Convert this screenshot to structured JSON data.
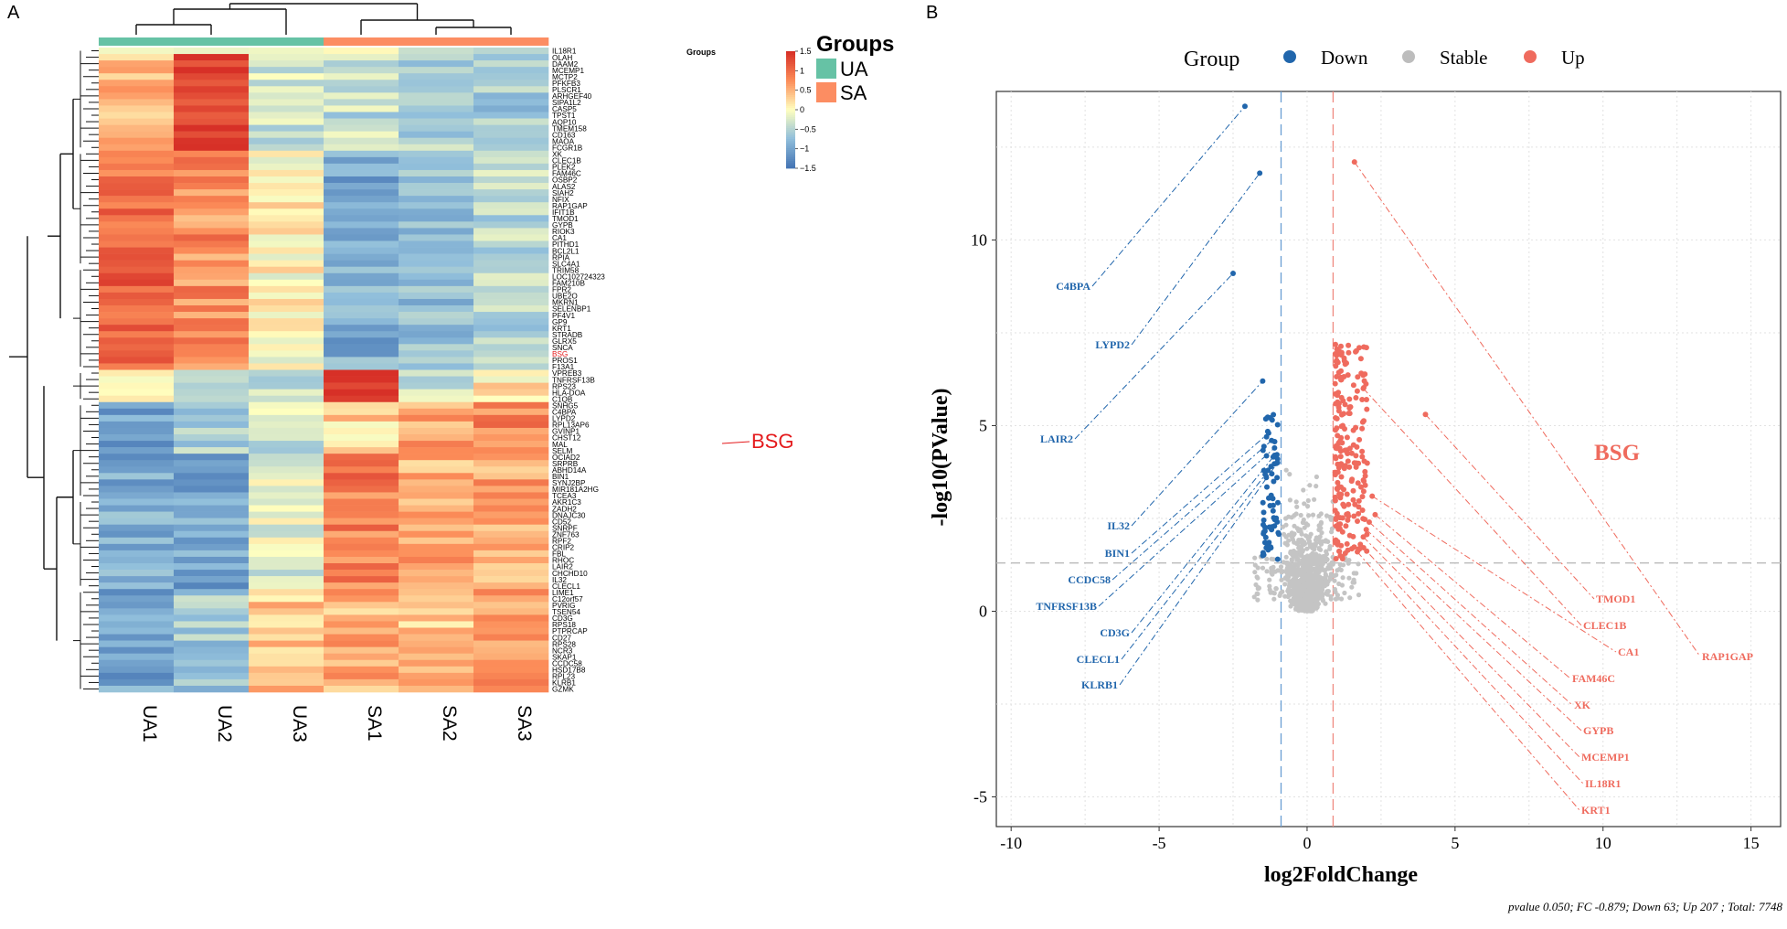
{
  "panel_labels": {
    "a": "A",
    "b": "B"
  },
  "heatmap": {
    "groups_header": "Groups",
    "groups_row_label": "Groups",
    "legend_title": "Groups",
    "legend_items": [
      {
        "label": "UA",
        "color": "#66c2a5"
      },
      {
        "label": "SA",
        "color": "#fc8d62"
      }
    ],
    "colorbar_ticks": [
      "1.5",
      "1",
      "0.5",
      "0",
      "−0.5",
      "−1",
      "−1.5"
    ],
    "highlight_label": "BSG",
    "highlight_color": "#e41a1c"
  },
  "chart_data": [
    {
      "type": "heatmap",
      "title": "",
      "columns": [
        "UA1",
        "UA2",
        "UA3",
        "SA1",
        "SA2",
        "SA3"
      ],
      "column_groups": [
        "UA",
        "UA",
        "UA",
        "SA",
        "SA",
        "SA"
      ],
      "color_range": [
        -1.5,
        1.5
      ],
      "rows": [
        "IL18R1",
        "OLAH",
        "DAAM2",
        "MCEMP1",
        "MCTP2",
        "PFKFB3",
        "PLSCR1",
        "ARHGEF40",
        "SIPA1L2",
        "CASP5",
        "TPST1",
        "AQP10",
        "TMEM158",
        "CD163",
        "MAOA",
        "FCGR1B",
        "XK",
        "CLEC1B",
        "PLEK2",
        "FAM46C",
        "OSBP2",
        "ALAS2",
        "SIAH2",
        "NFIX",
        "RAP1GAP",
        "IFIT1B",
        "TMOD1",
        "GYPB",
        "RIOK3",
        "CA1",
        "PITHD1",
        "BCL2L1",
        "RPIA",
        "SLC4A1",
        "TRIM58",
        "LOC102724323",
        "FAM210B",
        "FPR2",
        "UBE2O",
        "MKRN1",
        "SELENBP1",
        "PF4V1",
        "GP9",
        "KRT1",
        "STRADB",
        "GLRX5",
        "SNCA",
        "BSG",
        "PROS1",
        "F13A1",
        "VPREB3",
        "TNFRSF13B",
        "RPS23",
        "HLA-DOA",
        "C1QB",
        "SNHG5",
        "C4BPA",
        "LYPD2",
        "RPL13AP6",
        "GVINP1",
        "CHST12",
        "MAL",
        "SELM",
        "OCIAD2",
        "SRPRB",
        "ABHD14A",
        "BIN1",
        "SYNJ2BP",
        "MIR181A2HG",
        "TCEA3",
        "AKR1C3",
        "ZADH2",
        "DNAJC30",
        "CD52",
        "SNRPF",
        "ZNF763",
        "RPF2",
        "CRIP2",
        "FBL",
        "RHOC",
        "LAIR2",
        "CHCHD10",
        "IL32",
        "CLECL1",
        "LIME1",
        "C12orf57",
        "PVRIG",
        "TSEN54",
        "CD3G",
        "RPS18",
        "PTPRCAP",
        "CD27",
        "RPS28",
        "NCR3",
        "SKAP1",
        "CCDC58",
        "HSD17B8",
        "RPL23",
        "KLRB1",
        "GZMK"
      ],
      "highlight_row": "BSG"
    },
    {
      "type": "scatter",
      "title": "",
      "xlabel": "log2FoldChange",
      "ylabel": "-log10(PValue)",
      "xlim": [
        -10.5,
        16
      ],
      "ylim": [
        -5.8,
        14
      ],
      "xticks": [
        -10,
        -5,
        0,
        5,
        10,
        15
      ],
      "yticks": [
        -5,
        0,
        5,
        10
      ],
      "thresholds": {
        "pvalue_line": 1.3,
        "fc_lines": [
          -0.879,
          0.879
        ]
      },
      "legend": {
        "title": "Group",
        "entries": [
          {
            "label": "Down",
            "color": "#2166ac"
          },
          {
            "label": "Stable",
            "color": "#bdbdbd"
          },
          {
            "label": "Up",
            "color": "#ef6b5e"
          }
        ]
      },
      "highlight_annotation": "BSG",
      "footer": "pvalue  0.050; FC -0.879; Down 63; Up 207 ; Total: 7748",
      "labeled_points": {
        "down": [
          {
            "gene": "C4BPA",
            "x": -2.1,
            "y": 13.6
          },
          {
            "gene": "LYPD2",
            "x": -1.6,
            "y": 11.8
          },
          {
            "gene": "LAIR2",
            "x": -2.5,
            "y": 9.1
          },
          {
            "gene": "IL32",
            "x": -1.5,
            "y": 6.2
          },
          {
            "gene": "BIN1",
            "x": -1.3,
            "y": 4.8
          },
          {
            "gene": "CCDC58",
            "x": -1.2,
            "y": 4.6
          },
          {
            "gene": "TNFRSF13B",
            "x": -1.1,
            "y": 4.4
          },
          {
            "gene": "CD3G",
            "x": -1.1,
            "y": 4.2
          },
          {
            "gene": "CLECL1",
            "x": -1.0,
            "y": 4.1
          },
          {
            "gene": "KLRB1",
            "x": -1.0,
            "y": 4.0
          }
        ],
        "up": [
          {
            "gene": "RAP1GAP",
            "x": 1.6,
            "y": 12.1
          },
          {
            "gene": "TMOD1",
            "x": 4.0,
            "y": 5.3
          },
          {
            "gene": "CLEC1B",
            "x": 1.9,
            "y": 6.0
          },
          {
            "gene": "CA1",
            "x": 2.2,
            "y": 3.1
          },
          {
            "gene": "FAM46C",
            "x": 2.3,
            "y": 2.6
          },
          {
            "gene": "XK",
            "x": 2.1,
            "y": 2.4
          },
          {
            "gene": "GYPB",
            "x": 2.0,
            "y": 2.2
          },
          {
            "gene": "MCEMP1",
            "x": 1.9,
            "y": 2.0
          },
          {
            "gene": "IL18R1",
            "x": 1.8,
            "y": 1.8
          },
          {
            "gene": "KRT1",
            "x": 1.7,
            "y": 1.6
          }
        ]
      }
    }
  ]
}
